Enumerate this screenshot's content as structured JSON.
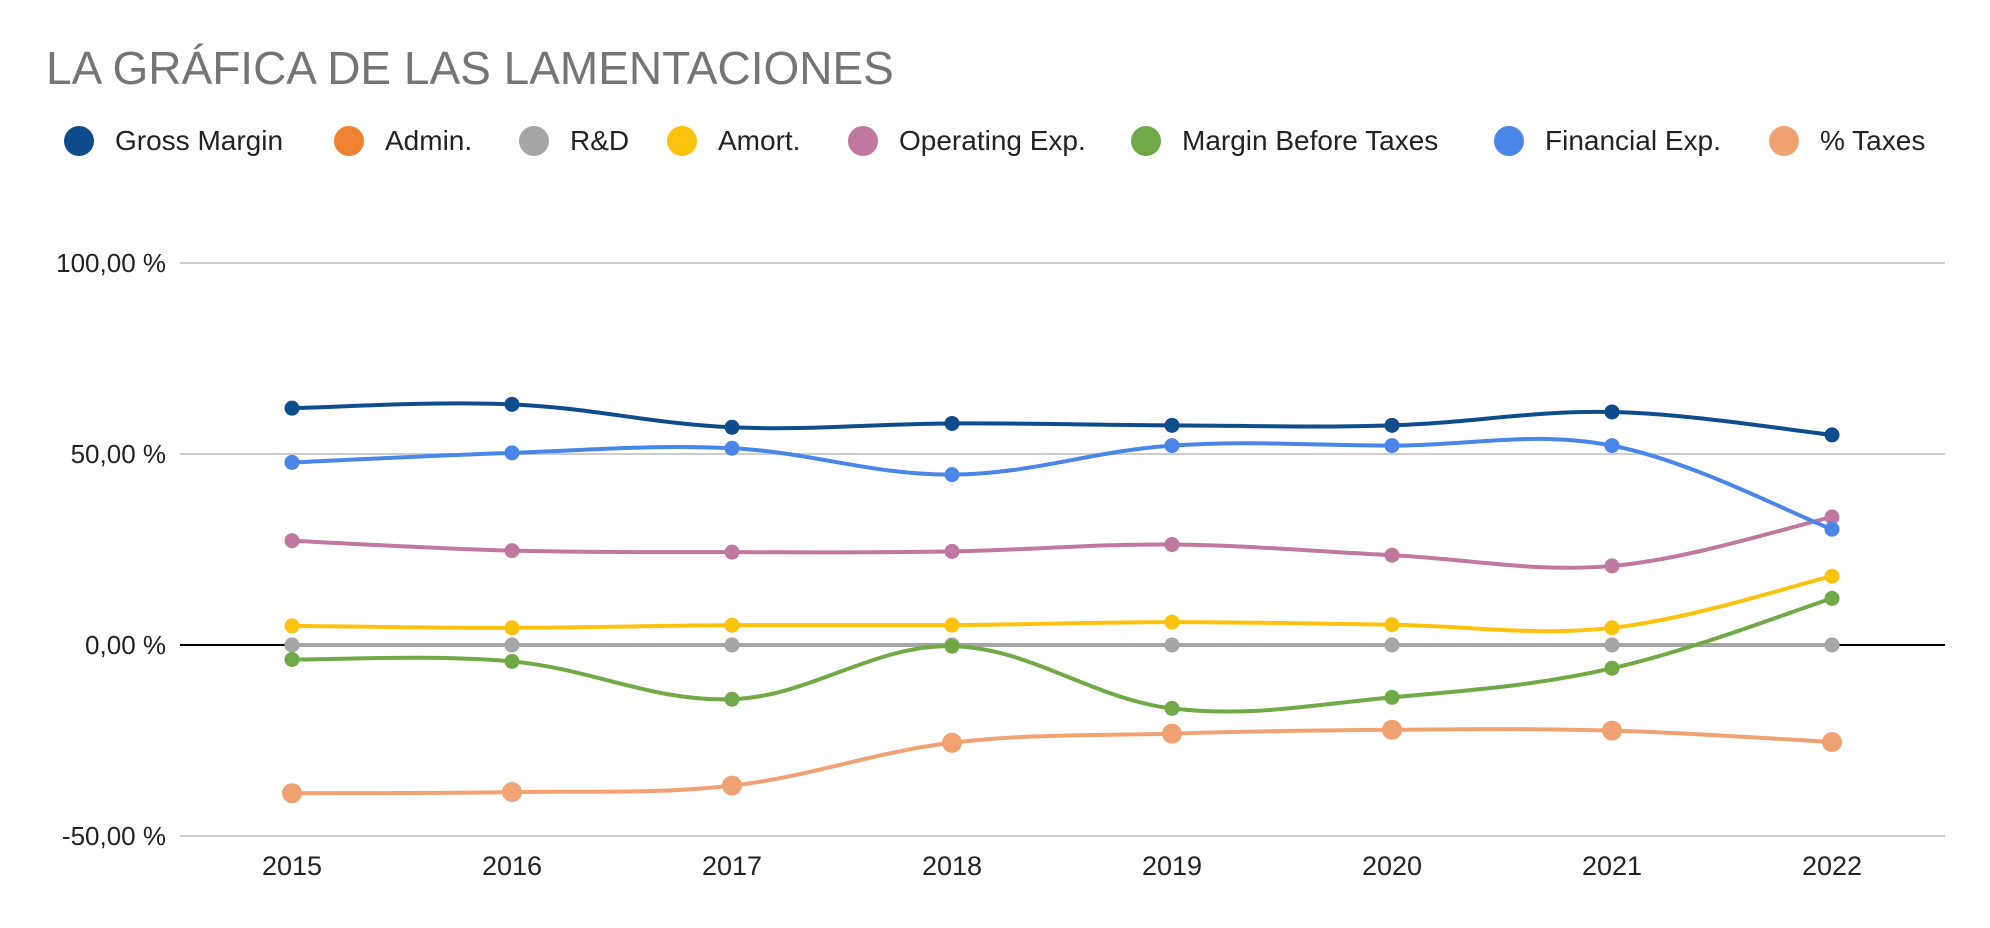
{
  "chart_data": {
    "type": "line",
    "title": "LA GRÁFICA DE LAS LAMENTACIONES",
    "xlabel": "",
    "ylabel": "",
    "x": [
      "2015",
      "2016",
      "2017",
      "2018",
      "2019",
      "2020",
      "2021",
      "2022"
    ],
    "ylim": [
      -50,
      100
    ],
    "yticks": [
      100,
      50,
      0,
      -50
    ],
    "ytick_labels": [
      "100,00 %",
      "50,00 %",
      "0,00 %",
      "-50,00 %"
    ],
    "grid": true,
    "legend_position": "top",
    "curve": "smooth",
    "series": [
      {
        "name": "Gross Margin",
        "color": "#0f4c8c",
        "values": [
          62,
          63,
          57,
          58,
          57.5,
          57.5,
          61,
          55
        ]
      },
      {
        "name": "Admin.",
        "color": "#ef8133",
        "values": [
          0,
          0,
          0,
          0,
          0,
          0,
          0,
          0
        ]
      },
      {
        "name": "R&D",
        "color": "#a6a6a6",
        "values": [
          0,
          0,
          0,
          0,
          0,
          0,
          0,
          0
        ]
      },
      {
        "name": "Amort.",
        "color": "#fbc20e",
        "values": [
          5,
          4.5,
          5.2,
          5.2,
          6,
          5.3,
          4.5,
          18
        ]
      },
      {
        "name": "Operating Exp.",
        "color": "#c077a0",
        "values": [
          27.3,
          24.7,
          24.3,
          24.5,
          26.3,
          23.5,
          20.7,
          33.5
        ]
      },
      {
        "name": "Margin Before Taxes",
        "color": "#6faa47",
        "values": [
          -3.8,
          -4.3,
          -14.2,
          -0.3,
          -16.6,
          -13.7,
          -6.1,
          12.2
        ]
      },
      {
        "name": "Financial Exp.",
        "color": "#4a86e8",
        "values": [
          47.8,
          50.3,
          51.5,
          44.6,
          52.2,
          52.2,
          52.2,
          30.3
        ]
      },
      {
        "name": "% Taxes",
        "color": "#f1a272",
        "values": [
          -38.8,
          -38.5,
          -36.8,
          -25.6,
          -23.2,
          -22.2,
          -22.4,
          -25.4
        ]
      }
    ]
  }
}
